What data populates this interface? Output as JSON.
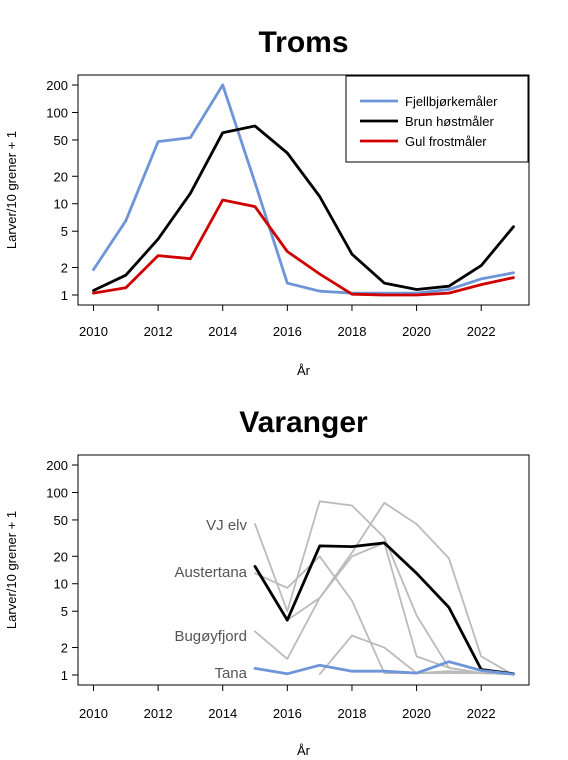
{
  "chart_data": [
    {
      "type": "line",
      "title": "Troms",
      "xlabel": "År",
      "ylabel": "Larver/10 grener + 1",
      "y_scale": "log",
      "xlim": [
        2010,
        2023
      ],
      "ylim": [
        1,
        200
      ],
      "x_ticks": [
        "2010",
        "2012",
        "2014",
        "2016",
        "2018",
        "2020",
        "2022"
      ],
      "y_ticks": [
        "1",
        "2",
        "5",
        "10",
        "20",
        "50",
        "100",
        "200"
      ],
      "legend_position": "top-right",
      "x": [
        2010,
        2011,
        2012,
        2013,
        2014,
        2015,
        2016,
        2017,
        2018,
        2019,
        2020,
        2021,
        2022,
        2023
      ],
      "series": [
        {
          "name": "Fjellbjørkemåler",
          "color": "#6d95d8",
          "values": [
            1.9,
            6.5,
            48,
            53,
            200,
            17,
            1.35,
            1.1,
            1.05,
            1.05,
            1.05,
            1.15,
            1.5,
            1.75
          ]
        },
        {
          "name": "Brun høstmåler",
          "color": "#000000",
          "values": [
            1.12,
            1.65,
            4.1,
            13,
            60,
            71,
            36,
            12,
            2.8,
            1.35,
            1.15,
            1.25,
            2.1,
            5.6
          ]
        },
        {
          "name": "Gul frostmåler",
          "color": "#d00000",
          "values": [
            1.05,
            1.2,
            2.7,
            2.5,
            11,
            9.3,
            3.0,
            1.7,
            1.02,
            1.0,
            1.0,
            1.05,
            1.3,
            1.55
          ]
        }
      ]
    },
    {
      "type": "line",
      "title": "Varanger",
      "xlabel": "År",
      "ylabel": "Larver/10 grener + 1",
      "y_scale": "log",
      "xlim": [
        2010,
        2023
      ],
      "ylim": [
        1,
        200
      ],
      "x_ticks": [
        "2010",
        "2012",
        "2014",
        "2016",
        "2018",
        "2020",
        "2022"
      ],
      "y_ticks": [
        "1",
        "2",
        "5",
        "10",
        "20",
        "50",
        "100",
        "200"
      ],
      "x": [
        2015,
        2016,
        2017,
        2018,
        2019,
        2020,
        2021,
        2022,
        2023
      ],
      "series": [
        {
          "name": "VJ elv",
          "color": "#bbbbbb",
          "values": [
            45,
            5,
            80,
            72,
            32,
            4.5,
            1.2,
            1.05,
            1.02
          ]
        },
        {
          "name": "",
          "color": "#bbbbbb",
          "values": [
            null,
            4.0,
            7,
            22,
            77,
            45,
            19,
            1.6,
            1.0
          ]
        },
        {
          "name": "",
          "color": "#bbbbbb",
          "values": [
            13,
            9,
            20,
            6.5,
            1.05,
            1.05,
            1.05,
            1.05,
            1.02
          ]
        },
        {
          "name": "Bugøyfjord",
          "color": "#bbbbbb",
          "values": [
            3.0,
            1.5,
            7,
            20,
            28,
            1.6,
            1.2,
            1.05,
            1.02
          ]
        },
        {
          "name": "",
          "color": "#bbbbbb",
          "values": [
            null,
            null,
            1.02,
            2.7,
            2.0,
            1.05,
            1.1,
            1.05,
            1.02
          ]
        },
        {
          "name": "Austertana",
          "color": "#000000",
          "values": [
            15.5,
            4.0,
            26,
            25.5,
            28,
            13,
            5.5,
            1.15,
            1.03
          ]
        },
        {
          "name": "Tana",
          "color": "#6d95d8",
          "values": [
            1.18,
            1.03,
            1.28,
            1.1,
            1.1,
            1.05,
            1.4,
            1.12,
            1.02
          ]
        }
      ]
    }
  ]
}
